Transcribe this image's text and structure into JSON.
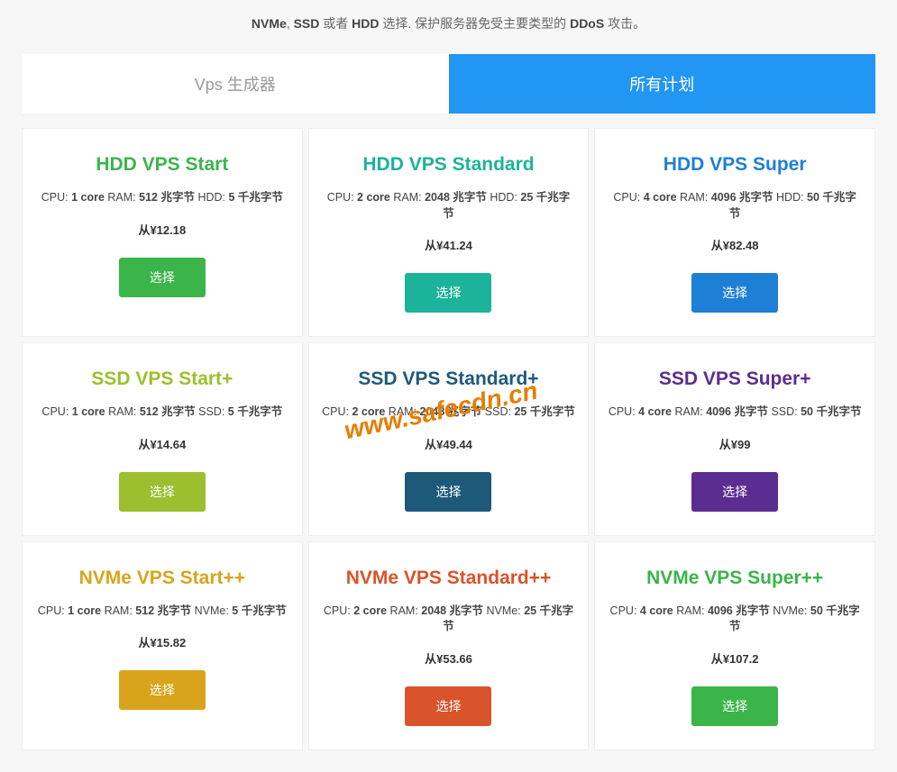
{
  "subtitle_html": "<b>NVMe</b>, <b>SSD</b> 或者 <b>HDD</b> 选择. 保护服务器免受主要类型的 <b>DDoS</b> 攻击。",
  "tabs": {
    "generator": "Vps 生成器",
    "all_plans": "所有计划"
  },
  "spec_labels": {
    "cpu": "CPU:",
    "ram": "RAM:",
    "price_prefix": "从"
  },
  "select_label": "选择",
  "colors": {
    "tab_active_bg": "#2196f3",
    "page_bg": "#f7f7f7"
  },
  "plans": [
    {
      "title": "HDD VPS Start",
      "title_color": "#3bb54a",
      "btn_color": "#3bb54a",
      "cpu": "1 core",
      "ram": "512 兆字节",
      "disk_type": "HDD",
      "disk": "5 千兆字节",
      "price": "¥12.18"
    },
    {
      "title": "HDD VPS Standard",
      "title_color": "#1bb39a",
      "btn_color": "#1bb39a",
      "cpu": "2 core",
      "ram": "2048 兆字节",
      "disk_type": "HDD",
      "disk": "25 千兆字节",
      "price": "¥41.24"
    },
    {
      "title": "HDD VPS Super",
      "title_color": "#1e7fd6",
      "btn_color": "#1e7fd6",
      "cpu": "4 core",
      "ram": "4096 兆字节",
      "disk_type": "HDD",
      "disk": "50 千兆字节",
      "price": "¥82.48"
    },
    {
      "title": "SSD VPS Start+",
      "title_color": "#9bbf2e",
      "btn_color": "#9bbf2e",
      "cpu": "1 core",
      "ram": "512 兆字节",
      "disk_type": "SSD",
      "disk": "5 千兆字节",
      "price": "¥14.64"
    },
    {
      "title": "SSD VPS Standard+",
      "title_color": "#1d5a7a",
      "btn_color": "#1d5a7a",
      "cpu": "2 core",
      "ram": "2048 兆字节",
      "disk_type": "SSD",
      "disk": "25 千兆字节",
      "price": "¥49.44"
    },
    {
      "title": "SSD VPS Super+",
      "title_color": "#5b2d91",
      "btn_color": "#5b2d91",
      "cpu": "4 core",
      "ram": "4096 兆字节",
      "disk_type": "SSD",
      "disk": "50 千兆字节",
      "price": "¥99"
    },
    {
      "title": "NVMe VPS Start++",
      "title_color": "#d9a41c",
      "btn_color": "#d9a41c",
      "cpu": "1 core",
      "ram": "512 兆字节",
      "disk_type": "NVMe",
      "disk": "5 千兆字节",
      "price": "¥15.82"
    },
    {
      "title": "NVMe VPS Standard++",
      "title_color": "#d9542b",
      "btn_color": "#d9542b",
      "cpu": "2 core",
      "ram": "2048 兆字节",
      "disk_type": "NVMe",
      "disk": "25 千兆字节",
      "price": "¥53.66"
    },
    {
      "title": "NVMe VPS Super++",
      "title_color": "#3bb54a",
      "btn_color": "#3bb54a",
      "cpu": "4 core",
      "ram": "4096 兆字节",
      "disk_type": "NVMe",
      "disk": "50 千兆字节",
      "price": "¥107.2"
    }
  ],
  "watermark": "www.safecdn.cn"
}
